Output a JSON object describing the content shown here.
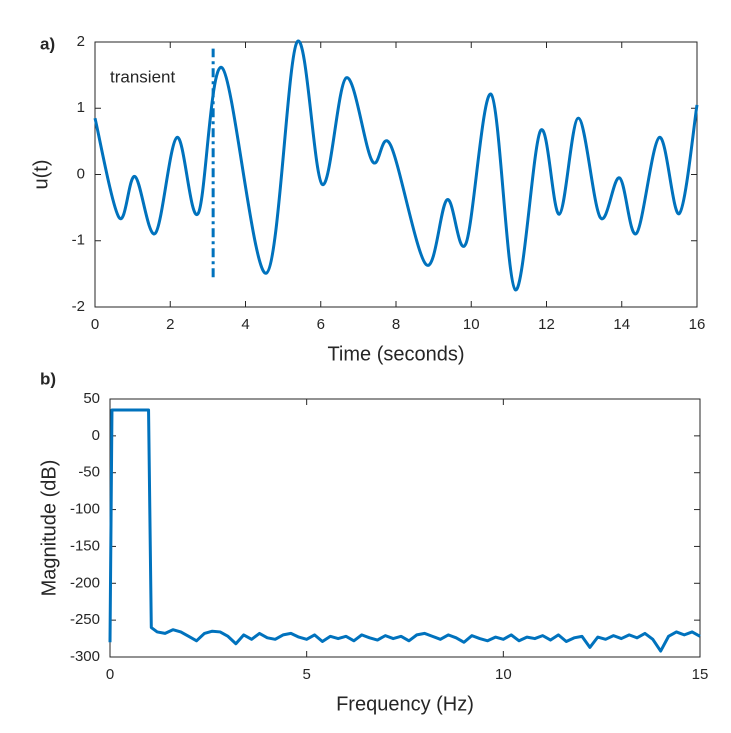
{
  "chart_data": [
    {
      "type": "line",
      "label": "a)",
      "xlabel": "Time (seconds)",
      "ylabel": "u(t)",
      "color": "#0072bd",
      "grid": false,
      "annotation": "transient",
      "vline": {
        "x": 3.14,
        "y": [
          -1.55,
          1.9
        ]
      },
      "x": [
        0,
        0.64,
        1.06,
        1.6,
        2.18,
        2.74,
        3.38,
        4.55,
        5.37,
        6.04,
        6.68,
        7.37,
        7.85,
        8.8,
        9.36,
        9.86,
        10.53,
        11.17,
        11.84,
        12.34,
        12.85,
        13.43,
        13.94,
        14.39,
        15.0,
        15.53,
        16
      ],
      "values": [
        0.85,
        -0.65,
        -0.03,
        -0.89,
        0.56,
        -0.59,
        1.61,
        -1.49,
        2.0,
        -0.15,
        1.46,
        0.2,
        0.45,
        -1.36,
        -0.38,
        -1.04,
        1.21,
        -1.74,
        0.66,
        -0.6,
        0.85,
        -0.65,
        -0.05,
        -0.89,
        0.56,
        -0.59,
        1.05
      ],
      "xlim": [
        0,
        16
      ],
      "xticks": [
        0,
        2,
        4,
        6,
        8,
        10,
        12,
        14,
        16
      ],
      "ylim": [
        -2,
        2
      ],
      "yticks": [
        -2,
        -1,
        0,
        1,
        2
      ]
    },
    {
      "type": "line",
      "label": "b)",
      "xlabel": "Frequency (Hz)",
      "ylabel": "Magnitude (dB)",
      "color": "#0072bd",
      "grid": false,
      "x": [
        0,
        0.05,
        0.98,
        1.05,
        1.2,
        1.4,
        1.6,
        1.8,
        2.0,
        2.2,
        2.4,
        2.6,
        2.8,
        3.0,
        3.2,
        3.4,
        3.6,
        3.8,
        4.0,
        4.2,
        4.4,
        4.6,
        4.8,
        5.0,
        5.2,
        5.4,
        5.6,
        5.8,
        6.0,
        6.2,
        6.4,
        6.6,
        6.8,
        7.0,
        7.2,
        7.4,
        7.6,
        7.8,
        8.0,
        8.2,
        8.4,
        8.6,
        8.8,
        9.0,
        9.2,
        9.4,
        9.6,
        9.8,
        10.0,
        10.2,
        10.4,
        10.6,
        10.8,
        11.0,
        11.2,
        11.4,
        11.6,
        11.8,
        12.0,
        12.2,
        12.4,
        12.6,
        12.8,
        13.0,
        13.2,
        13.4,
        13.6,
        13.8,
        14.0,
        14.2,
        14.4,
        14.6,
        14.8,
        15.0
      ],
      "values": [
        -280,
        35,
        35,
        -260,
        -266,
        -268,
        -263,
        -266,
        -272,
        -278,
        -268,
        -265,
        -266,
        -272,
        -282,
        -270,
        -276,
        -268,
        -274,
        -276,
        -270,
        -268,
        -273,
        -276,
        -270,
        -279,
        -272,
        -275,
        -272,
        -278,
        -270,
        -274,
        -277,
        -271,
        -275,
        -272,
        -278,
        -270,
        -268,
        -272,
        -276,
        -270,
        -274,
        -280,
        -271,
        -275,
        -278,
        -273,
        -276,
        -270,
        -278,
        -273,
        -275,
        -271,
        -277,
        -270,
        -279,
        -274,
        -272,
        -287,
        -273,
        -276,
        -271,
        -275,
        -270,
        -274,
        -268,
        -276,
        -292,
        -272,
        -266,
        -270,
        -266,
        -272
      ],
      "xlim": [
        0,
        15
      ],
      "xticks": [
        0,
        5,
        10,
        15
      ],
      "ylim": [
        -300,
        50
      ],
      "yticks": [
        -300,
        -250,
        -200,
        -150,
        -100,
        -50,
        0,
        50
      ]
    }
  ]
}
